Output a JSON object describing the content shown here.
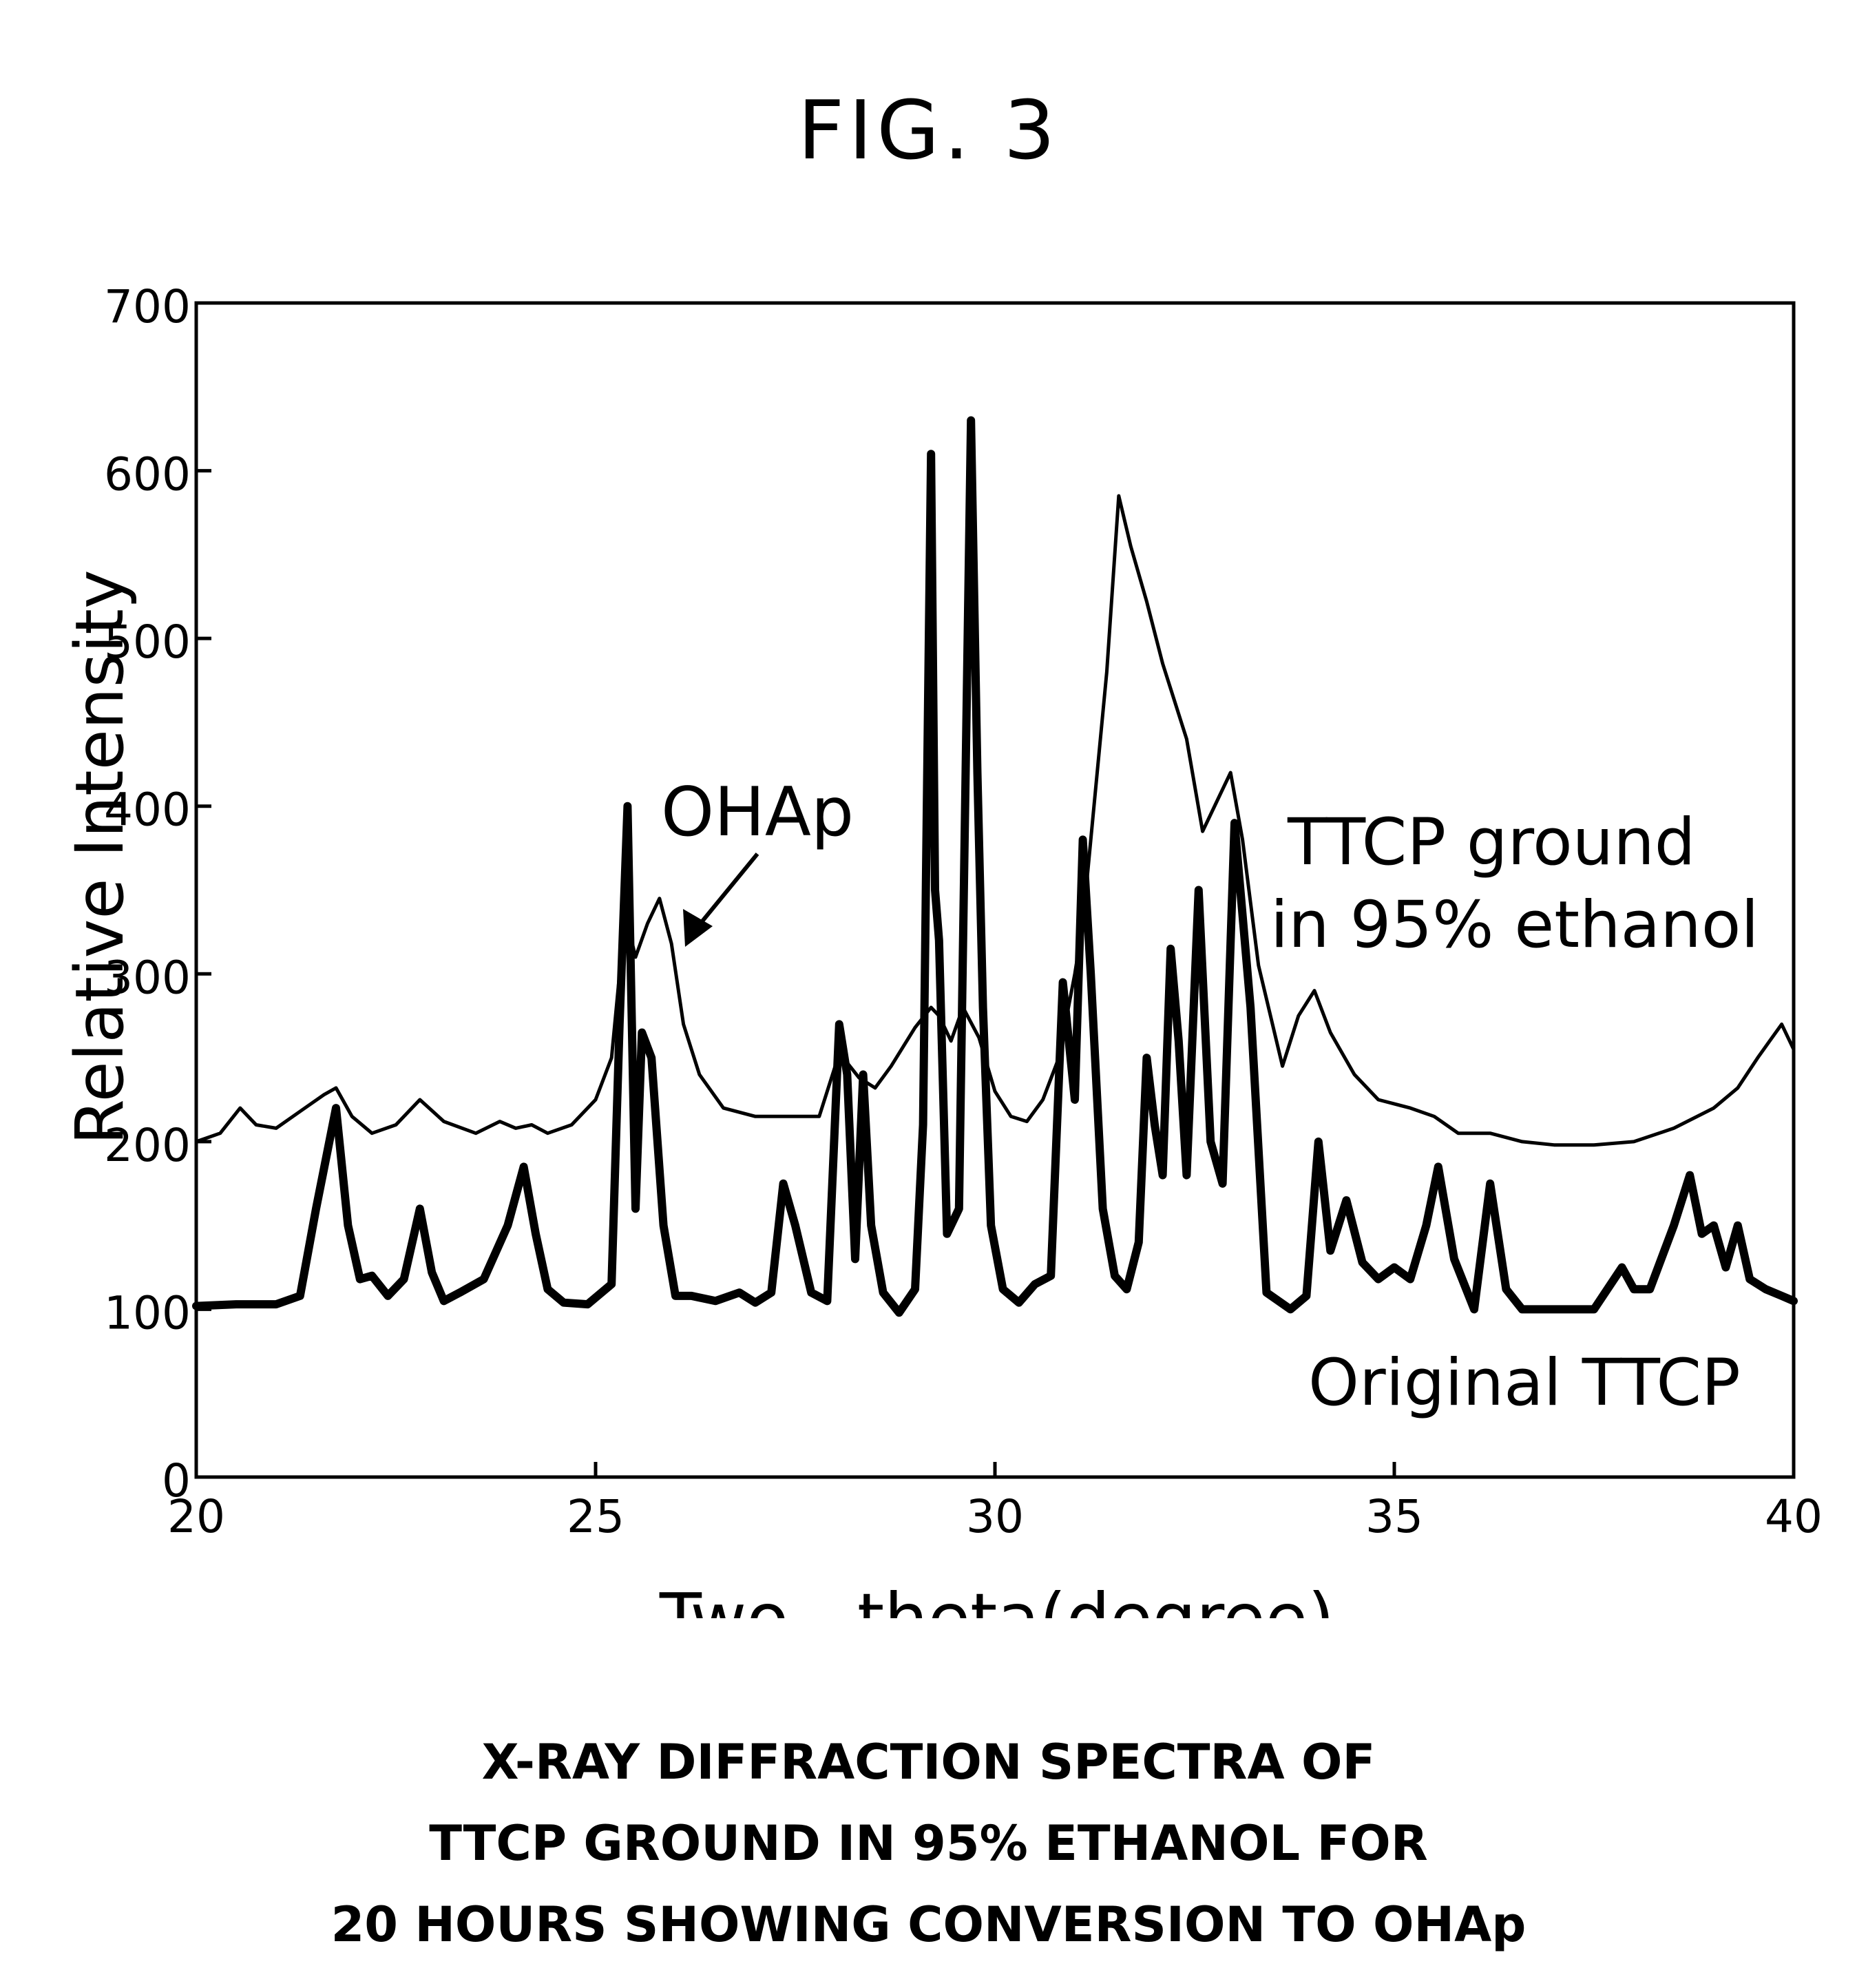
{
  "figure": {
    "title": "FIG. 3",
    "caption": [
      "X-RAY DIFFRACTION SPECTRA OF",
      "TTCP GROUND IN 95% ETHANOL FOR",
      "20 HOURS SHOWING CONVERSION TO OHAp"
    ]
  },
  "chart_data": {
    "type": "line",
    "title": "",
    "xlabel": "Two - theta(degree)",
    "ylabel": "Relative Intensity",
    "xlim": [
      20,
      40
    ],
    "ylim": [
      0,
      700
    ],
    "xticks": [
      20,
      25,
      30,
      35,
      40
    ],
    "yticks": [
      0,
      100,
      200,
      300,
      400,
      500,
      600,
      700
    ],
    "grid": false,
    "legend": "none",
    "annotations": [
      {
        "text": "OHAp",
        "points_to": {
          "x": 25.8,
          "y": 335
        }
      },
      {
        "text": "TTCP ground in 95% ethanol"
      },
      {
        "text": "Original TTCP"
      }
    ],
    "series": [
      {
        "name": "TTCP ground in 95% ethanol",
        "stroke": "thin",
        "x": [
          20.0,
          20.3,
          20.55,
          20.75,
          21.0,
          21.3,
          21.6,
          21.75,
          21.95,
          22.2,
          22.5,
          22.8,
          23.1,
          23.5,
          23.8,
          24.0,
          24.2,
          24.4,
          24.7,
          25.0,
          25.2,
          25.3,
          25.4,
          25.5,
          25.65,
          25.8,
          25.95,
          26.1,
          26.3,
          26.6,
          27.0,
          27.4,
          27.8,
          28.0,
          28.1,
          28.3,
          28.5,
          28.7,
          29.0,
          29.2,
          29.3,
          29.45,
          29.6,
          29.8,
          30.0,
          30.2,
          30.4,
          30.6,
          30.8,
          31.0,
          31.1,
          31.2,
          31.4,
          31.55,
          31.7,
          31.9,
          32.1,
          32.4,
          32.6,
          32.8,
          32.95,
          33.1,
          33.3,
          33.6,
          33.8,
          34.0,
          34.2,
          34.5,
          34.8,
          35.2,
          35.5,
          35.8,
          36.2,
          36.6,
          37.0,
          37.5,
          38.0,
          38.5,
          39.0,
          39.3,
          39.55,
          39.7,
          39.85,
          40.0
        ],
        "y": [
          200,
          205,
          220,
          210,
          208,
          218,
          228,
          232,
          215,
          205,
          210,
          225,
          212,
          205,
          212,
          208,
          210,
          205,
          210,
          225,
          250,
          300,
          330,
          310,
          330,
          345,
          318,
          270,
          240,
          220,
          215,
          215,
          215,
          245,
          250,
          238,
          232,
          245,
          268,
          280,
          275,
          260,
          280,
          262,
          230,
          215,
          212,
          225,
          250,
          300,
          330,
          380,
          480,
          585,
          555,
          522,
          485,
          440,
          385,
          405,
          420,
          380,
          305,
          245,
          275,
          290,
          265,
          240,
          225,
          220,
          215,
          205,
          205,
          200,
          198,
          198,
          200,
          208,
          220,
          232,
          250,
          260,
          270,
          255
        ]
      },
      {
        "name": "Original TTCP",
        "stroke": "thick",
        "x": [
          20.0,
          20.5,
          21.0,
          21.3,
          21.5,
          21.75,
          21.9,
          22.05,
          22.2,
          22.4,
          22.6,
          22.8,
          22.95,
          23.1,
          23.3,
          23.6,
          23.9,
          24.1,
          24.25,
          24.4,
          24.6,
          24.9,
          25.2,
          25.3,
          25.4,
          25.5,
          25.58,
          25.7,
          25.85,
          26.0,
          26.2,
          26.5,
          26.8,
          27.0,
          27.2,
          27.35,
          27.5,
          27.7,
          27.9,
          28.05,
          28.15,
          28.25,
          28.35,
          28.45,
          28.6,
          28.8,
          29.0,
          29.1,
          29.2,
          29.25,
          29.3,
          29.4,
          29.55,
          29.7,
          29.78,
          29.85,
          29.95,
          30.1,
          30.3,
          30.5,
          30.7,
          30.85,
          31.0,
          31.1,
          31.2,
          31.35,
          31.5,
          31.65,
          31.8,
          31.9,
          32.0,
          32.1,
          32.2,
          32.3,
          32.4,
          32.55,
          32.7,
          32.85,
          33.0,
          33.2,
          33.4,
          33.7,
          33.9,
          34.05,
          34.2,
          34.4,
          34.6,
          34.8,
          35.0,
          35.2,
          35.4,
          35.55,
          35.75,
          36.0,
          36.2,
          36.4,
          36.6,
          37.0,
          37.5,
          37.85,
          38.0,
          38.2,
          38.5,
          38.7,
          38.85,
          39.0,
          39.15,
          39.3,
          39.45,
          39.65,
          39.85,
          40.0
        ],
        "y": [
          102,
          103,
          103,
          108,
          160,
          220,
          150,
          118,
          120,
          108,
          118,
          160,
          122,
          105,
          110,
          118,
          150,
          185,
          145,
          112,
          104,
          103,
          115,
          270,
          400,
          160,
          265,
          250,
          150,
          108,
          108,
          105,
          110,
          104,
          110,
          175,
          150,
          110,
          105,
          270,
          240,
          130,
          240,
          150,
          110,
          98,
          112,
          210,
          610,
          350,
          320,
          145,
          160,
          630,
          420,
          280,
          150,
          112,
          104,
          115,
          120,
          295,
          225,
          380,
          300,
          160,
          120,
          112,
          140,
          250,
          210,
          180,
          315,
          260,
          180,
          350,
          200,
          175,
          390,
          280,
          110,
          100,
          108,
          200,
          135,
          165,
          128,
          118,
          125,
          118,
          150,
          185,
          130,
          100,
          175,
          112,
          100,
          100,
          100,
          125,
          112,
          112,
          150,
          180,
          145,
          150,
          125,
          150,
          118,
          112,
          108,
          105
        ]
      }
    ]
  }
}
